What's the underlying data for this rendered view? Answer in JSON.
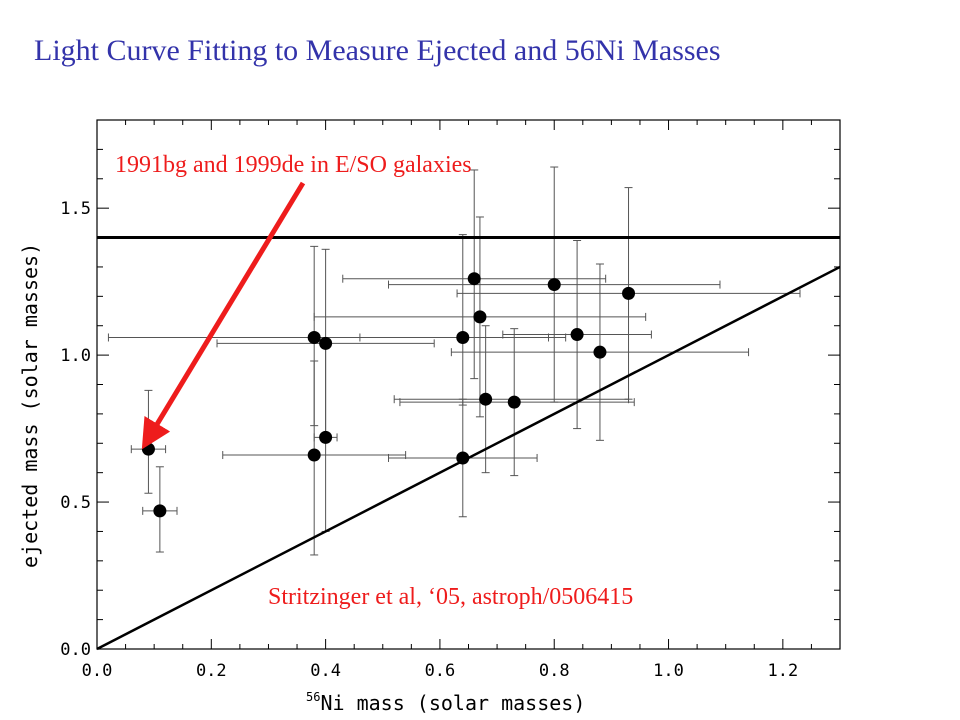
{
  "title": "Light Curve Fitting to Measure Ejected and 56Ni Masses",
  "chart_data": {
    "type": "scatter",
    "xlabel_sup": "56",
    "xlabel_main": "Ni mass (solar masses)",
    "ylabel": "ejected mass (solar masses)",
    "xlim": [
      0.0,
      1.3
    ],
    "ylim": [
      0.0,
      1.8
    ],
    "xticks": [
      0.0,
      0.2,
      0.4,
      0.6,
      0.8,
      1.0,
      1.2
    ],
    "xtick_labels": [
      "0.0",
      "0.2",
      "0.4",
      "0.6",
      "0.8",
      "1.0",
      "1.2"
    ],
    "yticks": [
      0.0,
      0.5,
      1.0,
      1.5
    ],
    "ytick_labels": [
      "0.0",
      "0.5",
      "1.0",
      "1.5"
    ],
    "grid": false,
    "horizontal_line_y": 1.4,
    "diagonal_line": {
      "x": [
        0.0,
        1.3
      ],
      "y": [
        0.0,
        1.3
      ]
    },
    "points": [
      {
        "x": 0.09,
        "y": 0.68,
        "x_lo": 0.06,
        "x_hi": 0.12,
        "y_lo": 0.53,
        "y_hi": 0.88
      },
      {
        "x": 0.11,
        "y": 0.47,
        "x_lo": 0.08,
        "x_hi": 0.14,
        "y_lo": 0.33,
        "y_hi": 0.62
      },
      {
        "x": 0.38,
        "y": 1.06,
        "x_lo": 0.02,
        "x_hi": 0.79,
        "y_lo": 0.76,
        "y_hi": 1.37
      },
      {
        "x": 0.4,
        "y": 1.04,
        "x_lo": 0.21,
        "x_hi": 0.59,
        "y_lo": 0.72,
        "y_hi": 1.36
      },
      {
        "x": 0.38,
        "y": 0.66,
        "x_lo": 0.22,
        "x_hi": 0.54,
        "y_lo": 0.32,
        "y_hi": 0.98
      },
      {
        "x": 0.4,
        "y": 0.72,
        "x_lo": 0.38,
        "x_hi": 0.42,
        "y_lo": 0.4,
        "y_hi": 1.04
      },
      {
        "x": 0.64,
        "y": 0.65,
        "x_lo": 0.51,
        "x_hi": 0.77,
        "y_lo": 0.45,
        "y_hi": 0.85
      },
      {
        "x": 0.64,
        "y": 1.06,
        "x_lo": 0.46,
        "x_hi": 0.82,
        "y_lo": 0.83,
        "y_hi": 1.41
      },
      {
        "x": 0.66,
        "y": 1.26,
        "x_lo": 0.43,
        "x_hi": 0.89,
        "y_lo": 0.92,
        "y_hi": 1.63
      },
      {
        "x": 0.67,
        "y": 1.13,
        "x_lo": 0.38,
        "x_hi": 0.96,
        "y_lo": 0.79,
        "y_hi": 1.47
      },
      {
        "x": 0.68,
        "y": 0.85,
        "x_lo": 0.52,
        "x_hi": 0.93,
        "y_lo": 0.6,
        "y_hi": 1.1
      },
      {
        "x": 0.73,
        "y": 0.84,
        "x_lo": 0.53,
        "x_hi": 0.94,
        "y_lo": 0.59,
        "y_hi": 1.09
      },
      {
        "x": 0.8,
        "y": 1.24,
        "x_lo": 0.51,
        "x_hi": 1.09,
        "y_lo": 0.84,
        "y_hi": 1.64
      },
      {
        "x": 0.84,
        "y": 1.07,
        "x_lo": 0.71,
        "x_hi": 0.97,
        "y_lo": 0.75,
        "y_hi": 1.39
      },
      {
        "x": 0.88,
        "y": 1.01,
        "x_lo": 0.62,
        "x_hi": 1.14,
        "y_lo": 0.71,
        "y_hi": 1.31
      },
      {
        "x": 0.93,
        "y": 1.21,
        "x_lo": 0.63,
        "x_hi": 1.23,
        "y_lo": 0.85,
        "y_hi": 1.57
      }
    ],
    "annotations": [
      {
        "text": "1991bg and 1999de in E/SO galaxies",
        "color": "#ee1c1c"
      },
      {
        "text": "Stritzinger et al, ‘05, astroph/0506415",
        "color": "#ee1c1c"
      }
    ],
    "arrow": {
      "color": "#ee1c1c",
      "target": {
        "x": 0.085,
        "y": 0.75
      }
    }
  }
}
